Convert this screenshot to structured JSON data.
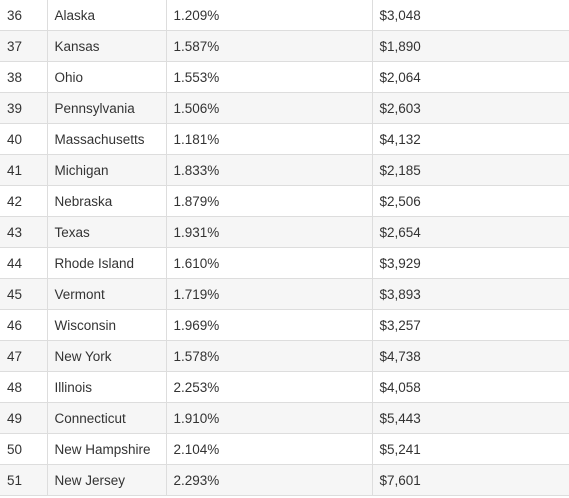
{
  "table": {
    "rows": [
      [
        "36",
        "Alaska",
        "1.209%",
        "$3,048"
      ],
      [
        "37",
        "Kansas",
        "1.587%",
        "$1,890"
      ],
      [
        "38",
        "Ohio",
        "1.553%",
        "$2,064"
      ],
      [
        "39",
        "Pennsylvania",
        "1.506%",
        "$2,603"
      ],
      [
        "40",
        "Massachusetts",
        "1.181%",
        "$4,132"
      ],
      [
        "41",
        "Michigan",
        "1.833%",
        "$2,185"
      ],
      [
        "42",
        "Nebraska",
        "1.879%",
        "$2,506"
      ],
      [
        "43",
        "Texas",
        "1.931%",
        "$2,654"
      ],
      [
        "44",
        "Rhode Island",
        "1.610%",
        "$3,929"
      ],
      [
        "45",
        "Vermont",
        "1.719%",
        "$3,893"
      ],
      [
        "46",
        "Wisconsin",
        "1.969%",
        "$3,257"
      ],
      [
        "47",
        "New York",
        "1.578%",
        "$4,738"
      ],
      [
        "48",
        "Illinois",
        "2.253%",
        "$4,058"
      ],
      [
        "49",
        "Connecticut",
        "1.910%",
        "$5,443"
      ],
      [
        "50",
        "New Hampshire",
        "2.104%",
        "$5,241"
      ],
      [
        "51",
        "New Jersey",
        "2.293%",
        "$7,601"
      ]
    ]
  }
}
